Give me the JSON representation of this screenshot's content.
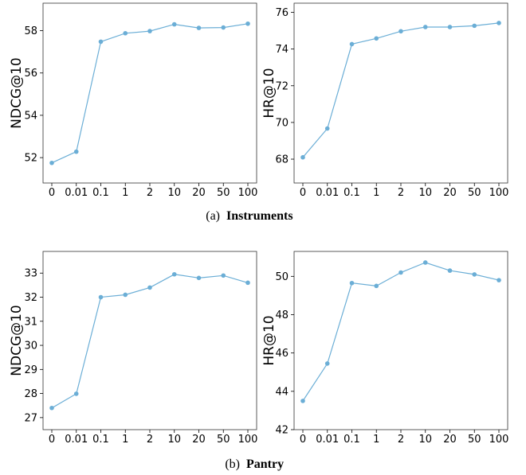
{
  "chart_data": [
    {
      "type": "line",
      "group": "a",
      "categories": [
        "0",
        "0.01",
        "0.1",
        "1",
        "2",
        "10",
        "20",
        "50",
        "100"
      ],
      "series": [
        {
          "values": [
            51.75,
            52.28,
            57.48,
            57.88,
            57.98,
            58.3,
            58.13,
            58.15,
            58.33
          ]
        }
      ],
      "xlabel": "",
      "ylabel": "NDCG@10",
      "ylim": [
        50.8,
        59.3
      ],
      "yticks": [
        52,
        54,
        56,
        58
      ],
      "color": "#6baed6"
    },
    {
      "type": "line",
      "group": "a",
      "categories": [
        "0",
        "0.01",
        "0.1",
        "1",
        "2",
        "10",
        "20",
        "50",
        "100"
      ],
      "series": [
        {
          "values": [
            68.1,
            69.67,
            74.27,
            74.58,
            74.97,
            75.2,
            75.2,
            75.27,
            75.42
          ]
        }
      ],
      "xlabel": "",
      "ylabel": "HR@10",
      "ylim": [
        66.7,
        76.5
      ],
      "yticks": [
        68,
        70,
        72,
        74,
        76
      ],
      "color": "#6baed6"
    },
    {
      "type": "line",
      "group": "b",
      "categories": [
        "0",
        "0.01",
        "0.1",
        "1",
        "2",
        "10",
        "20",
        "50",
        "100"
      ],
      "series": [
        {
          "values": [
            27.4,
            27.99,
            32.0,
            32.1,
            32.4,
            32.95,
            32.8,
            32.9,
            32.6
          ]
        }
      ],
      "xlabel": "",
      "ylabel": "NDCG@10",
      "ylim": [
        26.5,
        33.9
      ],
      "yticks": [
        27,
        28,
        29,
        30,
        31,
        32,
        33
      ],
      "color": "#6baed6"
    },
    {
      "type": "line",
      "group": "b",
      "categories": [
        "0",
        "0.01",
        "0.1",
        "1",
        "2",
        "10",
        "20",
        "50",
        "100"
      ],
      "series": [
        {
          "values": [
            43.5,
            45.45,
            49.65,
            49.5,
            50.2,
            50.72,
            50.3,
            50.1,
            49.8
          ]
        }
      ],
      "xlabel": "",
      "ylabel": "HR@10",
      "ylim": [
        42.0,
        51.3
      ],
      "yticks": [
        42,
        44,
        46,
        48,
        50
      ],
      "color": "#6baed6"
    }
  ],
  "captions": {
    "a": {
      "prefix": "(a)",
      "title": "Instruments"
    },
    "b": {
      "prefix": "(b)",
      "title": "Pantry"
    }
  }
}
